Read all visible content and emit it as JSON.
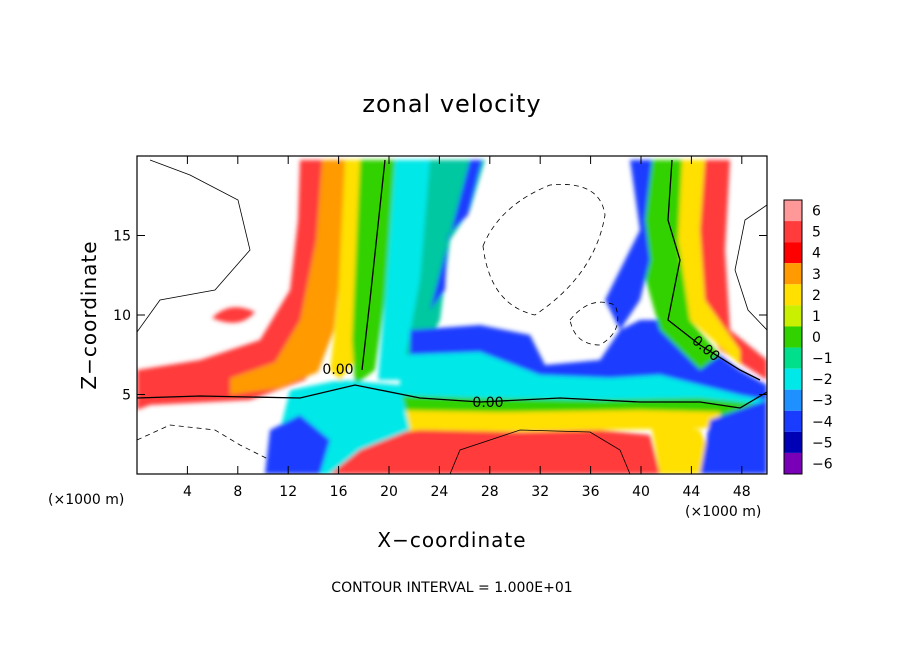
{
  "chart_data": {
    "type": "heatmap",
    "title": "zonal velocity",
    "xlabel": "X−coordinate",
    "ylabel": "Z−coordinate",
    "x_unit": "(×1000 m)",
    "x_unit_right": "(×1000 m)",
    "xlim": [
      0,
      50
    ],
    "ylim": [
      0,
      20
    ],
    "x_ticks": [
      4,
      8,
      12,
      16,
      20,
      24,
      28,
      32,
      36,
      40,
      44,
      48
    ],
    "y_ticks": [
      5,
      10,
      15
    ],
    "y_tick_labels": [
      "5",
      "10",
      "15"
    ],
    "colorbar": {
      "values": [
        6,
        5,
        4,
        3,
        2,
        1,
        0,
        -1,
        -2,
        -3,
        -4,
        -5,
        -6
      ],
      "labels": [
        "6",
        "5",
        "4",
        "3",
        "2",
        "1",
        "0",
        "−1",
        "−2",
        "−3",
        "−4",
        "−5",
        "−6"
      ],
      "colors": [
        "#ff9999",
        "#ff3b3b",
        "#ff0000",
        "#ff9a00",
        "#ffe000",
        "#c8f000",
        "#31d200",
        "#00e08c",
        "#00e8e8",
        "#1e90ff",
        "#1a3cff",
        "#0000b4",
        "#7a00b8"
      ]
    },
    "contour_labels": [
      "0.00",
      "0.00",
      "0.00"
    ],
    "footer": "CONTOUR INTERVAL = 1.000E+01"
  }
}
